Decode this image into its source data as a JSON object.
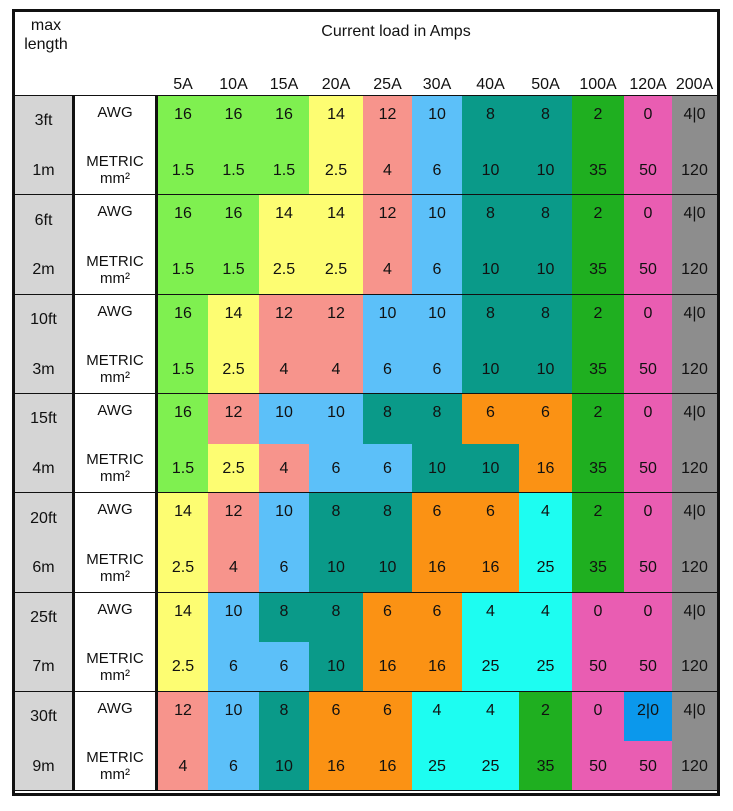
{
  "header": {
    "corner_label": "max length",
    "title": "Current load in Amps",
    "columns": [
      "5A",
      "10A",
      "15A",
      "20A",
      "25A",
      "30A",
      "40A",
      "50A",
      "100A",
      "120A",
      "200A"
    ]
  },
  "row_labels": {
    "awg": "AWG",
    "metric": "METRIC mm²"
  },
  "colors": {
    "lime": "#7ff050",
    "yellow": "#fdfd72",
    "salmon": "#f7948c",
    "lightblue": "#5cc0f9",
    "teal": "#0a9a89",
    "orange": "#fb9214",
    "cyan": "#1dfdf1",
    "green": "#1faf20",
    "pink": "#e95db2",
    "blue": "#0b98ec",
    "gray": "#8d8d8d"
  },
  "groups": [
    {
      "ft": "3ft",
      "m": "1m",
      "awg": [
        "16",
        "16",
        "16",
        "14",
        "12",
        "10",
        "8",
        "8",
        "2",
        "0",
        "4|0"
      ],
      "awg_c": [
        "lime",
        "lime",
        "lime",
        "yellow",
        "salmon",
        "lightblue",
        "teal",
        "teal",
        "green",
        "pink",
        "gray"
      ],
      "mm": [
        "1.5",
        "1.5",
        "1.5",
        "2.5",
        "4",
        "6",
        "10",
        "10",
        "35",
        "50",
        "120"
      ],
      "mm_c": [
        "lime",
        "lime",
        "lime",
        "yellow",
        "salmon",
        "lightblue",
        "teal",
        "teal",
        "green",
        "pink",
        "gray"
      ]
    },
    {
      "ft": "6ft",
      "m": "2m",
      "awg": [
        "16",
        "16",
        "14",
        "14",
        "12",
        "10",
        "8",
        "8",
        "2",
        "0",
        "4|0"
      ],
      "awg_c": [
        "lime",
        "lime",
        "yellow",
        "yellow",
        "salmon",
        "lightblue",
        "teal",
        "teal",
        "green",
        "pink",
        "gray"
      ],
      "mm": [
        "1.5",
        "1.5",
        "2.5",
        "2.5",
        "4",
        "6",
        "10",
        "10",
        "35",
        "50",
        "120"
      ],
      "mm_c": [
        "lime",
        "lime",
        "yellow",
        "yellow",
        "salmon",
        "lightblue",
        "teal",
        "teal",
        "green",
        "pink",
        "gray"
      ]
    },
    {
      "ft": "10ft",
      "m": "3m",
      "awg": [
        "16",
        "14",
        "12",
        "12",
        "10",
        "10",
        "8",
        "8",
        "2",
        "0",
        "4|0"
      ],
      "awg_c": [
        "lime",
        "yellow",
        "salmon",
        "salmon",
        "lightblue",
        "lightblue",
        "teal",
        "teal",
        "green",
        "pink",
        "gray"
      ],
      "mm": [
        "1.5",
        "2.5",
        "4",
        "4",
        "6",
        "6",
        "10",
        "10",
        "35",
        "50",
        "120"
      ],
      "mm_c": [
        "lime",
        "yellow",
        "salmon",
        "salmon",
        "lightblue",
        "lightblue",
        "teal",
        "teal",
        "green",
        "pink",
        "gray"
      ]
    },
    {
      "ft": "15ft",
      "m": "4m",
      "awg": [
        "16",
        "12",
        "10",
        "10",
        "8",
        "8",
        "6",
        "6",
        "2",
        "0",
        "4|0"
      ],
      "awg_c": [
        "lime",
        "salmon",
        "lightblue",
        "lightblue",
        "teal",
        "teal",
        "orange",
        "orange",
        "green",
        "pink",
        "gray"
      ],
      "mm": [
        "1.5",
        "2.5",
        "4",
        "6",
        "6",
        "10",
        "10",
        "16",
        "35",
        "50",
        "120"
      ],
      "mm_c": [
        "lime",
        "yellow",
        "salmon",
        "lightblue",
        "lightblue",
        "teal",
        "teal",
        "orange",
        "green",
        "pink",
        "gray"
      ]
    },
    {
      "ft": "20ft",
      "m": "6m",
      "awg": [
        "14",
        "12",
        "10",
        "8",
        "8",
        "6",
        "6",
        "4",
        "2",
        "0",
        "4|0"
      ],
      "awg_c": [
        "yellow",
        "salmon",
        "lightblue",
        "teal",
        "teal",
        "orange",
        "orange",
        "cyan",
        "green",
        "pink",
        "gray"
      ],
      "mm": [
        "2.5",
        "4",
        "6",
        "10",
        "10",
        "16",
        "16",
        "25",
        "35",
        "50",
        "120"
      ],
      "mm_c": [
        "yellow",
        "salmon",
        "lightblue",
        "teal",
        "teal",
        "orange",
        "orange",
        "cyan",
        "green",
        "pink",
        "gray"
      ]
    },
    {
      "ft": "25ft",
      "m": "7m",
      "awg": [
        "14",
        "10",
        "8",
        "8",
        "6",
        "6",
        "4",
        "4",
        "0",
        "0",
        "4|0"
      ],
      "awg_c": [
        "yellow",
        "lightblue",
        "teal",
        "teal",
        "orange",
        "orange",
        "cyan",
        "cyan",
        "pink",
        "pink",
        "gray"
      ],
      "mm": [
        "2.5",
        "6",
        "6",
        "10",
        "16",
        "16",
        "25",
        "25",
        "50",
        "50",
        "120"
      ],
      "mm_c": [
        "yellow",
        "lightblue",
        "lightblue",
        "teal",
        "orange",
        "orange",
        "cyan",
        "cyan",
        "pink",
        "pink",
        "gray"
      ]
    },
    {
      "ft": "30ft",
      "m": "9m",
      "awg": [
        "12",
        "10",
        "8",
        "6",
        "6",
        "4",
        "4",
        "2",
        "0",
        "2|0",
        "4|0"
      ],
      "awg_c": [
        "salmon",
        "lightblue",
        "teal",
        "orange",
        "orange",
        "cyan",
        "cyan",
        "green",
        "pink",
        "blue",
        "gray"
      ],
      "mm": [
        "4",
        "6",
        "10",
        "16",
        "16",
        "25",
        "25",
        "35",
        "50",
        "50",
        "120"
      ],
      "mm_c": [
        "salmon",
        "lightblue",
        "teal",
        "orange",
        "orange",
        "cyan",
        "cyan",
        "green",
        "pink",
        "pink",
        "gray"
      ]
    }
  ]
}
